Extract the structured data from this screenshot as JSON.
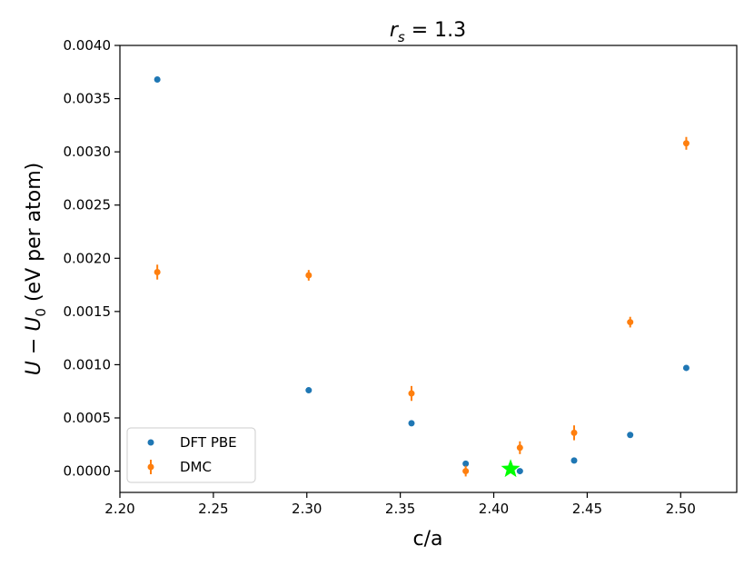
{
  "chart_data": {
    "type": "scatter",
    "title_parts": {
      "var": "r",
      "sub": "s",
      "rest": " = 1.3"
    },
    "xlabel": "c/a",
    "ylabel_parts": {
      "u1": "U",
      "minus": " − ",
      "u2": "U",
      "sub": "0",
      "rest": " (eV per atom)"
    },
    "xlim": [
      2.2,
      2.53
    ],
    "ylim": [
      -0.0002,
      0.004
    ],
    "xticks": [
      2.2,
      2.25,
      2.3,
      2.35,
      2.4,
      2.45,
      2.5
    ],
    "xtick_labels": [
      "2.20",
      "2.25",
      "2.30",
      "2.35",
      "2.40",
      "2.45",
      "2.50"
    ],
    "yticks": [
      0.0,
      0.0005,
      0.001,
      0.0015,
      0.002,
      0.0025,
      0.003,
      0.0035,
      0.004
    ],
    "ytick_labels": [
      "0.0000",
      "0.0005",
      "0.0010",
      "0.0015",
      "0.0020",
      "0.0025",
      "0.0030",
      "0.0035",
      "0.0040"
    ],
    "grid": false,
    "legend_position": "lower-left",
    "series": [
      {
        "name": "DFT PBE",
        "color": "#1f77b4",
        "marker": "circle",
        "x": [
          2.22,
          2.301,
          2.356,
          2.385,
          2.414,
          2.443,
          2.473,
          2.503
        ],
        "y": [
          0.00368,
          0.00076,
          0.00045,
          7e-05,
          0.0,
          0.0001,
          0.00034,
          0.00097
        ]
      },
      {
        "name": "DMC",
        "color": "#ff7f0e",
        "marker": "circle-errorbar",
        "x": [
          2.22,
          2.301,
          2.356,
          2.385,
          2.414,
          2.443,
          2.473,
          2.503
        ],
        "y": [
          0.00187,
          0.00184,
          0.00073,
          0.0,
          0.00022,
          0.00036,
          0.0014,
          0.00308
        ],
        "err": [
          7e-05,
          5e-05,
          7e-05,
          5e-05,
          6e-05,
          7e-05,
          5e-05,
          6e-05
        ]
      }
    ],
    "annotations": [
      {
        "type": "star",
        "color": "#00ff00",
        "x": 2.409,
        "y": 2e-05
      }
    ]
  }
}
